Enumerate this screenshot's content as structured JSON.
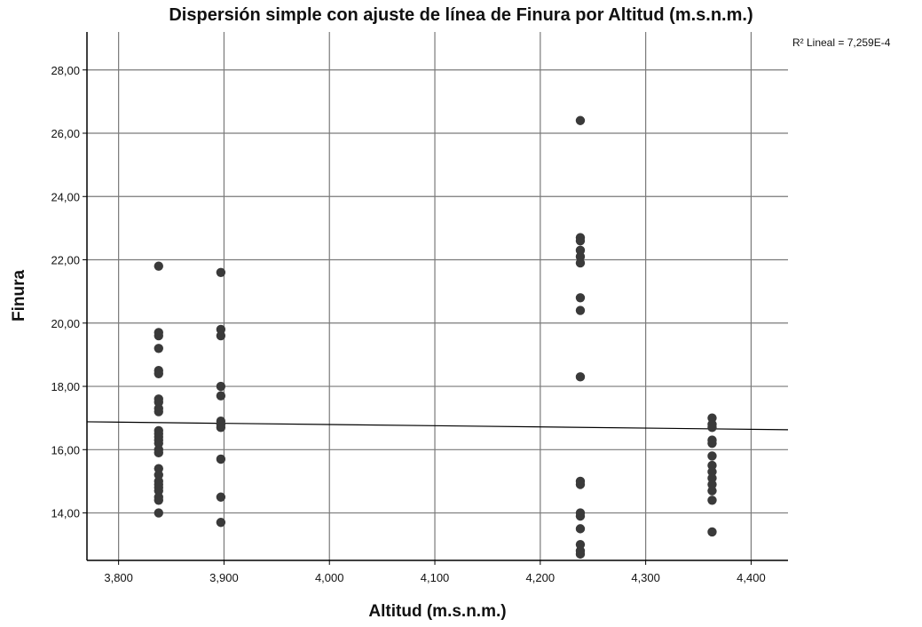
{
  "chart_data": {
    "type": "scatter",
    "title": "Dispersión simple con ajuste de línea de Finura por Altitud (m.s.n.m.)",
    "xlabel": "Altitud (m.s.n.m.)",
    "ylabel": "Finura",
    "annotation": "R² Lineal = 7,259E-4",
    "xlim": [
      3770,
      4435
    ],
    "ylim": [
      12.5,
      29.2
    ],
    "x_ticks": [
      3800,
      3900,
      4000,
      4100,
      4200,
      4300,
      4400
    ],
    "x_tick_labels": [
      "3,800",
      "3,900",
      "4,000",
      "4,100",
      "4,200",
      "4,300",
      "4,400"
    ],
    "y_ticks": [
      14,
      16,
      18,
      20,
      22,
      24,
      26,
      28
    ],
    "y_tick_labels": [
      "14,00",
      "16,00",
      "18,00",
      "20,00",
      "22,00",
      "24,00",
      "26,00",
      "28,00"
    ],
    "grid": true,
    "points": [
      {
        "x": 3838,
        "y": 21.8
      },
      {
        "x": 3838,
        "y": 19.7
      },
      {
        "x": 3838,
        "y": 19.6
      },
      {
        "x": 3838,
        "y": 19.2
      },
      {
        "x": 3838,
        "y": 18.5
      },
      {
        "x": 3838,
        "y": 18.4
      },
      {
        "x": 3838,
        "y": 17.6
      },
      {
        "x": 3838,
        "y": 17.5
      },
      {
        "x": 3838,
        "y": 17.3
      },
      {
        "x": 3838,
        "y": 17.2
      },
      {
        "x": 3838,
        "y": 16.6
      },
      {
        "x": 3838,
        "y": 16.5
      },
      {
        "x": 3838,
        "y": 16.4
      },
      {
        "x": 3838,
        "y": 16.3
      },
      {
        "x": 3838,
        "y": 16.2
      },
      {
        "x": 3838,
        "y": 16.0
      },
      {
        "x": 3838,
        "y": 15.9
      },
      {
        "x": 3838,
        "y": 15.4
      },
      {
        "x": 3838,
        "y": 15.2
      },
      {
        "x": 3838,
        "y": 15.0
      },
      {
        "x": 3838,
        "y": 14.9
      },
      {
        "x": 3838,
        "y": 14.8
      },
      {
        "x": 3838,
        "y": 14.7
      },
      {
        "x": 3838,
        "y": 14.5
      },
      {
        "x": 3838,
        "y": 14.4
      },
      {
        "x": 3838,
        "y": 14.0
      },
      {
        "x": 3897,
        "y": 21.6
      },
      {
        "x": 3897,
        "y": 19.8
      },
      {
        "x": 3897,
        "y": 19.6
      },
      {
        "x": 3897,
        "y": 18.0
      },
      {
        "x": 3897,
        "y": 17.7
      },
      {
        "x": 3897,
        "y": 16.9
      },
      {
        "x": 3897,
        "y": 16.8
      },
      {
        "x": 3897,
        "y": 16.7
      },
      {
        "x": 3897,
        "y": 15.7
      },
      {
        "x": 3897,
        "y": 14.5
      },
      {
        "x": 3897,
        "y": 13.7
      },
      {
        "x": 4238,
        "y": 26.4
      },
      {
        "x": 4238,
        "y": 22.7
      },
      {
        "x": 4238,
        "y": 22.6
      },
      {
        "x": 4238,
        "y": 22.3
      },
      {
        "x": 4238,
        "y": 22.1
      },
      {
        "x": 4238,
        "y": 21.9
      },
      {
        "x": 4238,
        "y": 20.8
      },
      {
        "x": 4238,
        "y": 20.4
      },
      {
        "x": 4238,
        "y": 18.3
      },
      {
        "x": 4238,
        "y": 15.0
      },
      {
        "x": 4238,
        "y": 14.9
      },
      {
        "x": 4238,
        "y": 14.0
      },
      {
        "x": 4238,
        "y": 13.9
      },
      {
        "x": 4238,
        "y": 13.5
      },
      {
        "x": 4238,
        "y": 13.0
      },
      {
        "x": 4238,
        "y": 12.8
      },
      {
        "x": 4238,
        "y": 12.7
      },
      {
        "x": 4363,
        "y": 17.0
      },
      {
        "x": 4363,
        "y": 16.8
      },
      {
        "x": 4363,
        "y": 16.7
      },
      {
        "x": 4363,
        "y": 16.3
      },
      {
        "x": 4363,
        "y": 16.2
      },
      {
        "x": 4363,
        "y": 15.8
      },
      {
        "x": 4363,
        "y": 15.5
      },
      {
        "x": 4363,
        "y": 15.3
      },
      {
        "x": 4363,
        "y": 15.1
      },
      {
        "x": 4363,
        "y": 14.9
      },
      {
        "x": 4363,
        "y": 14.7
      },
      {
        "x": 4363,
        "y": 14.4
      },
      {
        "x": 4363,
        "y": 13.4
      }
    ],
    "fit_line": {
      "x": [
        3770,
        4435
      ],
      "y": [
        16.88,
        16.63
      ]
    },
    "colors": {
      "point": "#3a3a3a",
      "grid": "#7a7a7a",
      "axis": "#000000",
      "fit": "#000000"
    }
  }
}
